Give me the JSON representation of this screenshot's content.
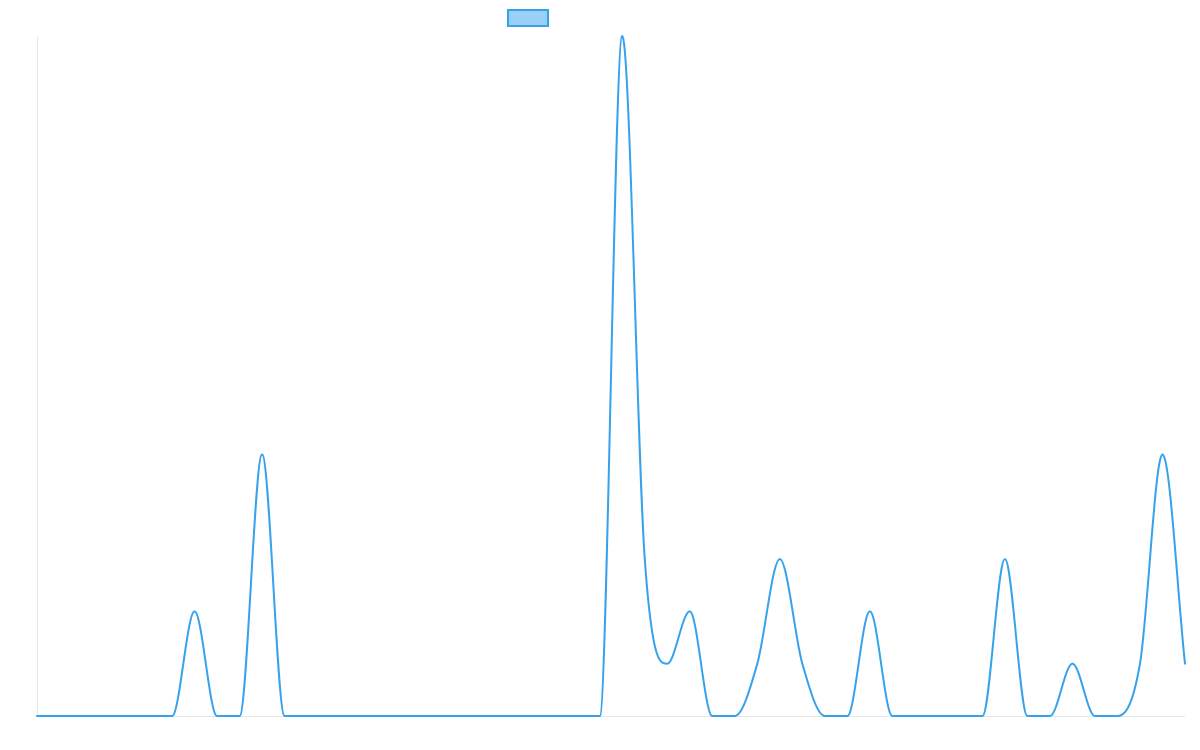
{
  "chart_data": {
    "type": "line",
    "title": "",
    "xlabel": "",
    "ylabel": "",
    "grid": false,
    "legend": {
      "placement": "top-center",
      "labels": [
        ""
      ]
    },
    "x": [
      0,
      1,
      2,
      3,
      4,
      5,
      6,
      7,
      8,
      9,
      10,
      11,
      12,
      13,
      14,
      15,
      16,
      17,
      18,
      19,
      20,
      21,
      22,
      23,
      24,
      25,
      26,
      27,
      28,
      29,
      30,
      31,
      32,
      33,
      34,
      35,
      36,
      37,
      38,
      39,
      40,
      41,
      42,
      43,
      44,
      45,
      46,
      47,
      48,
      49,
      50,
      51
    ],
    "xlim": [
      0,
      51
    ],
    "ylim": [
      0,
      13
    ],
    "series": [
      {
        "name": "",
        "color": "#36a2eb",
        "fill": "#9ad0f5",
        "values": [
          0,
          0,
          0,
          0,
          0,
          0,
          0,
          2,
          0,
          0,
          5,
          0,
          0,
          0,
          0,
          0,
          0,
          0,
          0,
          0,
          0,
          0,
          0,
          0,
          0,
          0,
          13,
          3,
          1,
          2,
          0,
          0,
          1,
          3,
          1,
          0,
          0,
          2,
          0,
          0,
          0,
          0,
          0,
          3,
          0,
          0,
          1,
          0,
          0,
          1,
          5,
          1
        ]
      }
    ]
  }
}
